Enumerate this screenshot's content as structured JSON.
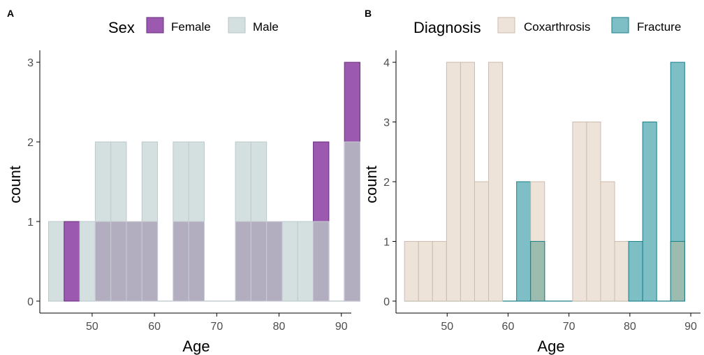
{
  "colors": {
    "female": "#9b59b0",
    "male": "#d4dfe0",
    "female_male_overlap": "#b2aec0",
    "coxarthrosis": "#ede3d8",
    "coxarthrosis_edge": "#cdbcad",
    "fracture": "#7dbfc4",
    "fracture_edge": "#1a7f89",
    "overlap_diag": "#9cbcb0",
    "axis": "#000000",
    "tick_text": "#4d4d4d"
  },
  "chart_data": [
    {
      "type": "histogram",
      "panel_label": "A",
      "legend": {
        "title": "Sex",
        "position": "top",
        "entries": [
          "Female",
          "Male"
        ]
      },
      "xlabel": "Age",
      "ylabel": "count",
      "xlim": [
        41.6,
        91.6
      ],
      "ylim": [
        -0.15,
        3.15
      ],
      "x_ticks": [
        50,
        60,
        70,
        80,
        90
      ],
      "y_ticks": [
        0,
        1,
        2,
        3
      ],
      "grid": false,
      "bin_width": 2.5,
      "bin_start": 43,
      "series": [
        {
          "name": "Female",
          "values": [
            0,
            1,
            0,
            1,
            1,
            1,
            1,
            0,
            1,
            1,
            0,
            0,
            1,
            1,
            1,
            0,
            0,
            2,
            0,
            3
          ]
        },
        {
          "name": "Male",
          "values": [
            1,
            0,
            1,
            2,
            2,
            1,
            2,
            0,
            2,
            2,
            0,
            0,
            2,
            2,
            1,
            1,
            1,
            1,
            0,
            2
          ]
        }
      ]
    },
    {
      "type": "histogram",
      "panel_label": "B",
      "legend": {
        "title": "Diagnosis",
        "position": "top",
        "entries": [
          "Coxarthrosis",
          "Fracture"
        ]
      },
      "xlabel": "Age",
      "ylabel": "count",
      "xlim": [
        41.6,
        91.6
      ],
      "ylim": [
        -0.2,
        4.2
      ],
      "x_ticks": [
        50,
        60,
        70,
        80,
        90
      ],
      "y_ticks": [
        0,
        1,
        2,
        3,
        4
      ],
      "grid": false,
      "bin_width": 2.3,
      "bin_start": 43,
      "series": [
        {
          "name": "Coxarthrosis",
          "values": [
            1,
            1,
            1,
            4,
            4,
            2,
            4,
            0,
            0,
            2,
            0,
            0,
            3,
            3,
            2,
            1,
            0,
            0,
            0,
            1
          ]
        },
        {
          "name": "Fracture",
          "values": [
            0,
            0,
            0,
            0,
            0,
            0,
            0,
            0,
            2,
            1,
            0,
            0,
            0,
            0,
            0,
            0,
            1,
            3,
            0,
            4
          ]
        }
      ]
    }
  ]
}
